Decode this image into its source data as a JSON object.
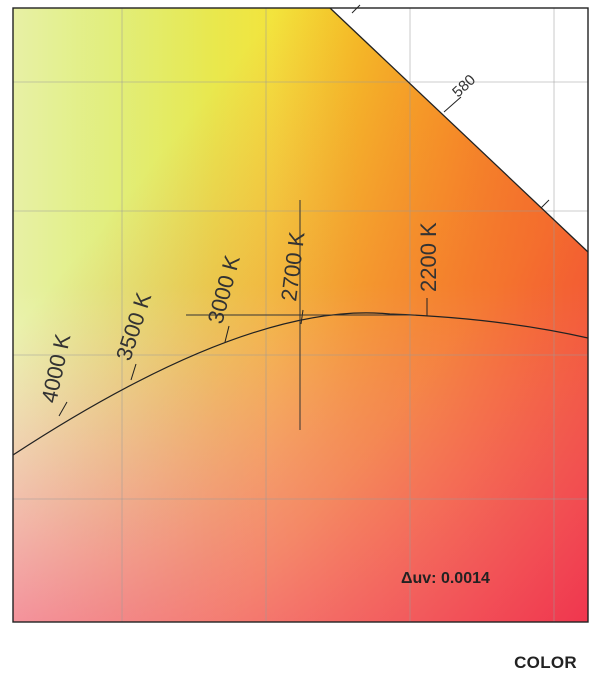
{
  "diagram": {
    "type": "cie-chromaticity-locus-zoom",
    "spectral_locus_label": "580",
    "cct_ticks": [
      {
        "label": "4000 K"
      },
      {
        "label": "3500 K"
      },
      {
        "label": "3000 K"
      },
      {
        "label": "2700 K"
      },
      {
        "label": "2200 K"
      }
    ],
    "measurement": {
      "delta_uv_label": "Δuv: 0.0014"
    },
    "colors": {
      "background_top_left": "#b6f23a",
      "background_top_mid": "#f0e12a",
      "background_orange": "#f7941d",
      "background_bottom_left": "#f7a8c4",
      "background_bottom_right": "#f0364e",
      "locus_line": "#222222",
      "grid": "#9a9a9a"
    }
  },
  "footer": {
    "label": "COLOR"
  }
}
